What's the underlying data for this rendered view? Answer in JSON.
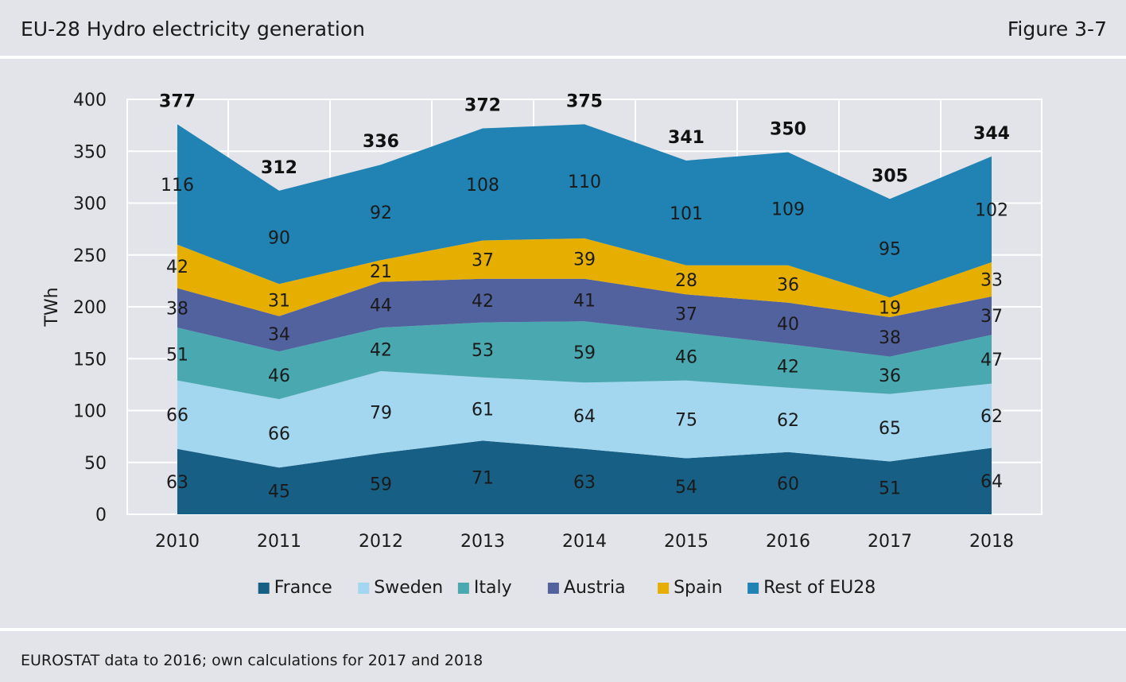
{
  "header": {
    "title": "EU-28 Hydro electricity generation",
    "figure": "Figure 3-7"
  },
  "footer": {
    "source": "EUROSTAT data to 2016; own calculations for 2017 and 2018"
  },
  "chart_data": {
    "type": "area",
    "stacked": true,
    "title": "",
    "xlabel": "",
    "ylabel": "TWh",
    "ylim": [
      0,
      400
    ],
    "yticks": [
      0,
      50,
      100,
      150,
      200,
      250,
      300,
      350,
      400
    ],
    "grid": true,
    "legend_position": "bottom",
    "categories": [
      "2010",
      "2011",
      "2012",
      "2013",
      "2014",
      "2015",
      "2016",
      "2017",
      "2018"
    ],
    "series": [
      {
        "name": "France",
        "color": "#175f85",
        "values": [
          63,
          45,
          59,
          71,
          63,
          54,
          60,
          51,
          64
        ]
      },
      {
        "name": "Sweden",
        "color": "#a3d6ef",
        "values": [
          66,
          66,
          79,
          61,
          64,
          75,
          62,
          65,
          62
        ]
      },
      {
        "name": "Italy",
        "color": "#49a8b0",
        "values": [
          51,
          46,
          42,
          53,
          59,
          46,
          42,
          36,
          47
        ]
      },
      {
        "name": "Austria",
        "color": "#52629e",
        "values": [
          38,
          34,
          44,
          42,
          41,
          37,
          40,
          38,
          37
        ]
      },
      {
        "name": "Spain",
        "color": "#e6af00",
        "values": [
          42,
          31,
          21,
          37,
          39,
          28,
          36,
          19,
          33
        ]
      },
      {
        "name": "Rest of EU28",
        "color": "#2083b4",
        "values": [
          116,
          90,
          92,
          108,
          110,
          101,
          109,
          95,
          102
        ]
      }
    ],
    "totals": [
      377,
      312,
      336,
      372,
      375,
      341,
      350,
      305,
      344
    ]
  }
}
